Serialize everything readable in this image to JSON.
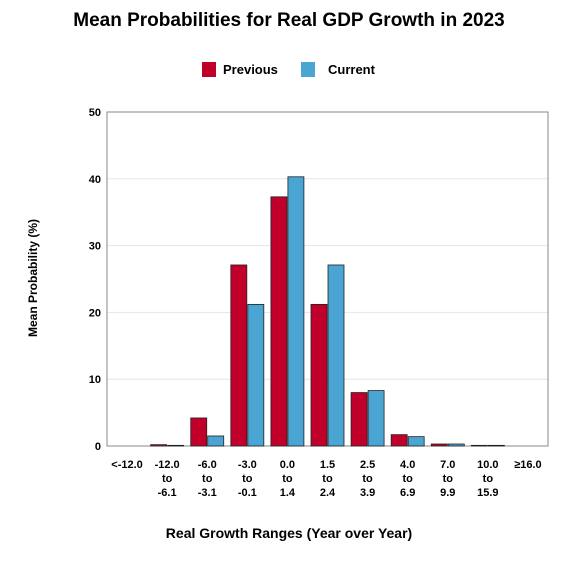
{
  "chart_data": {
    "type": "bar",
    "title": "Mean Probabilities for Real GDP Growth in 2023",
    "xlabel": "Real Growth Ranges (Year over Year)",
    "ylabel": "Mean Probability (%)",
    "ylim": [
      0,
      50
    ],
    "yticks": [
      0,
      10,
      20,
      30,
      40,
      50
    ],
    "grid": true,
    "legend_position": "top",
    "categories": [
      [
        "<-12.0"
      ],
      [
        "-12.0",
        "to",
        "-6.1"
      ],
      [
        "-6.0",
        "to",
        "-3.1"
      ],
      [
        "-3.0",
        "to",
        "-0.1"
      ],
      [
        "0.0",
        "to",
        "1.4"
      ],
      [
        "1.5",
        "to",
        "2.4"
      ],
      [
        "2.5",
        "to",
        "3.9"
      ],
      [
        "4.0",
        "to",
        "6.9"
      ],
      [
        "7.0",
        "to",
        "9.9"
      ],
      [
        "10.0",
        "to",
        "15.9"
      ],
      [
        "≥16.0"
      ]
    ],
    "series": [
      {
        "name": "Previous",
        "color": "#c0002a",
        "values": [
          0.0,
          0.2,
          4.2,
          27.1,
          37.3,
          21.2,
          8.0,
          1.7,
          0.3,
          0.1,
          0.0
        ]
      },
      {
        "name": "Current",
        "color": "#4aa5d2",
        "values": [
          0.0,
          0.1,
          1.5,
          21.2,
          40.3,
          27.1,
          8.3,
          1.4,
          0.3,
          0.1,
          0.0
        ]
      }
    ]
  }
}
